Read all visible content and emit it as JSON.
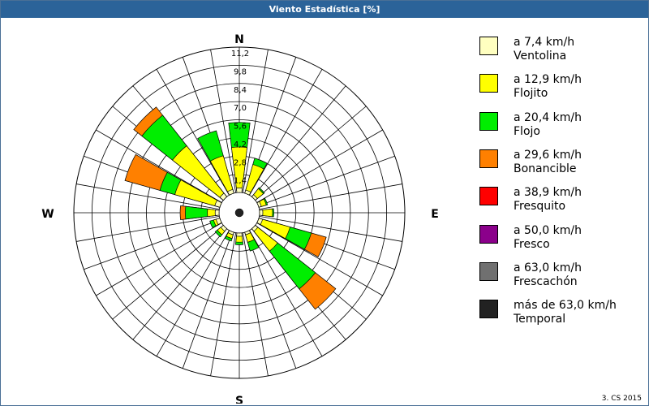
{
  "title": "Viento Estadística [%]",
  "footer": "3. CS 2015",
  "chart_data": {
    "type": "windrose",
    "title": "Viento Estadística [%]",
    "unit": "%",
    "radial_ticks": [
      "1,4",
      "2,8",
      "4,2",
      "5,6",
      "7,0",
      "8,4",
      "9,8",
      "11,2"
    ],
    "radial_max": 11.2,
    "directions": [
      "N",
      "E",
      "S",
      "W"
    ],
    "sectors_deg": [
      0,
      22.5,
      45,
      67.5,
      90,
      112.5,
      135,
      157.5,
      180,
      202.5,
      225,
      247.5,
      270,
      292.5,
      315,
      337.5
    ],
    "series": [
      {
        "name": "Ventolina",
        "range": "a 7,4 km/h",
        "color": "#ffffc0",
        "values": [
          0.35,
          0.25,
          0.2,
          0.2,
          0.25,
          0.3,
          0.25,
          0.2,
          0.25,
          0.2,
          0.25,
          0.3,
          0.3,
          0.4,
          0.35,
          0.3
        ]
      },
      {
        "name": "Flojito",
        "range": "a 12,9 km/h",
        "color": "#ffff00",
        "values": [
          3.5,
          2.3,
          0.8,
          0.6,
          1.0,
          2.5,
          2.2,
          0.8,
          0.7,
          0.5,
          0.6,
          0.5,
          0.9,
          3.6,
          5.0,
          3.0
        ]
      },
      {
        "name": "Flojo",
        "range": "a 20,4 km/h",
        "color": "#00ee00",
        "values": [
          5.4,
          2.8,
          0.9,
          0.7,
          1.1,
          4.2,
          5.9,
          1.5,
          0.9,
          0.7,
          0.8,
          0.8,
          2.6,
          4.8,
          8.0,
          5.0
        ]
      },
      {
        "name": "Bonancible",
        "range": "a 29,6 km/h",
        "color": "#ff8000",
        "values": [
          5.4,
          2.8,
          0.9,
          0.7,
          1.1,
          5.4,
          7.9,
          1.5,
          0.9,
          0.7,
          0.8,
          0.8,
          3.0,
          7.6,
          8.8,
          5.0
        ]
      },
      {
        "name": "Fresquito",
        "range": "a 38,9 km/h",
        "color": "#ff0000",
        "values": [
          5.4,
          2.8,
          0.9,
          0.7,
          1.1,
          5.4,
          7.9,
          1.5,
          0.9,
          0.7,
          0.8,
          0.8,
          3.0,
          7.6,
          8.8,
          5.0
        ]
      },
      {
        "name": "Fresco",
        "range": "a 50,0 km/h",
        "color": "#8b008b",
        "values": [
          5.4,
          2.8,
          0.9,
          0.7,
          1.1,
          5.4,
          7.9,
          1.5,
          0.9,
          0.7,
          0.8,
          0.8,
          3.0,
          7.6,
          8.8,
          5.0
        ]
      },
      {
        "name": "Frescachón",
        "range": "a 63,0 km/h",
        "color": "#707070",
        "values": [
          5.4,
          2.8,
          0.9,
          0.7,
          1.1,
          5.4,
          7.9,
          1.5,
          0.9,
          0.7,
          0.8,
          0.8,
          3.0,
          7.6,
          8.8,
          5.0
        ]
      },
      {
        "name": "Temporal",
        "range": "más de 63,0 km/h",
        "color": "#222222",
        "values": [
          5.4,
          2.8,
          0.9,
          0.7,
          1.1,
          5.4,
          7.9,
          1.5,
          0.9,
          0.7,
          0.8,
          0.8,
          3.0,
          7.6,
          8.8,
          5.0
        ]
      }
    ],
    "legend_position": "right",
    "grid": true
  }
}
